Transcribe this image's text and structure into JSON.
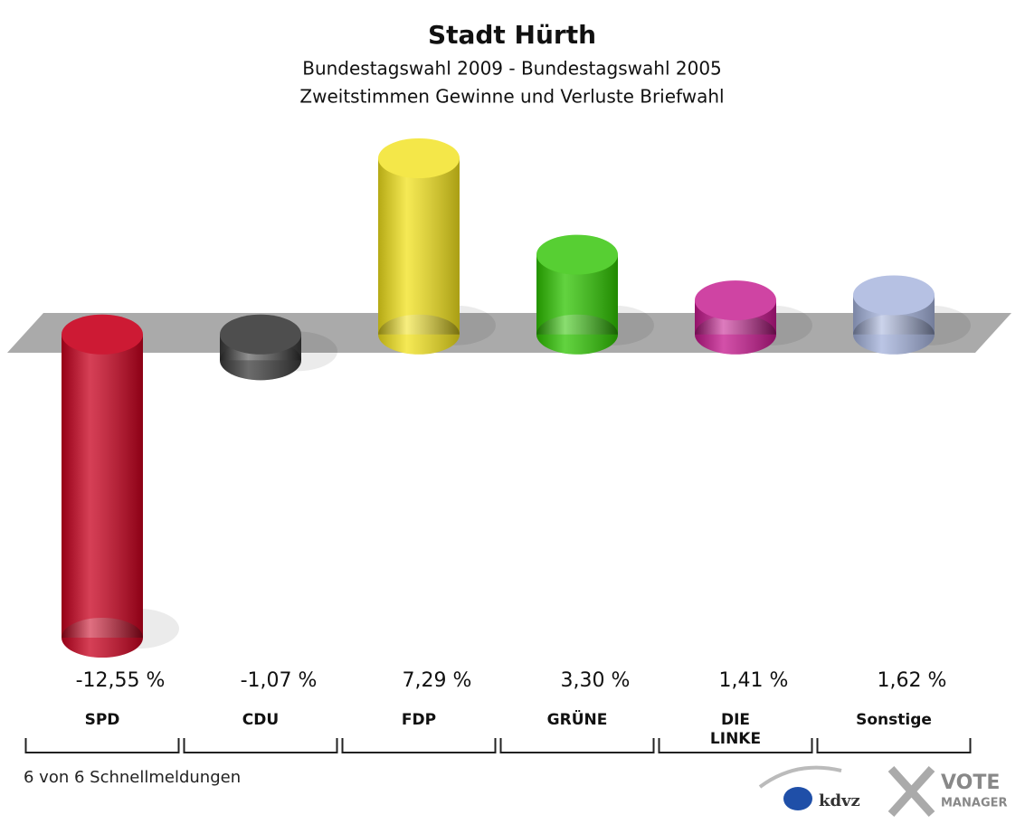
{
  "chart_data": {
    "type": "bar",
    "title": "Stadt Hürth",
    "subtitle": [
      "Bundestagswahl 2009 - Bundestagswahl 2005",
      "Zweitstimmen Gewinne und Verluste Briefwahl"
    ],
    "categories": [
      "SPD",
      "CDU",
      "FDP",
      "GRÜNE",
      "DIE LINKE",
      "Sonstige"
    ],
    "values": [
      -12.55,
      -1.07,
      7.29,
      3.3,
      1.41,
      1.62
    ],
    "value_labels": [
      "-12,55 %",
      "-1,07 %",
      "7,29 %",
      "3,30 %",
      "1,41 %",
      "1,62 %"
    ],
    "colors": [
      "#c8001e",
      "#3a3a3a",
      "#f2e21c",
      "#2ec400",
      "#c4168c",
      "#a4b2dc"
    ]
  },
  "footer": {
    "note": "6 von 6 Schnellmeldungen",
    "logo_left": "kdvz",
    "logo_right": [
      "VOTE",
      "MANAGER"
    ]
  }
}
